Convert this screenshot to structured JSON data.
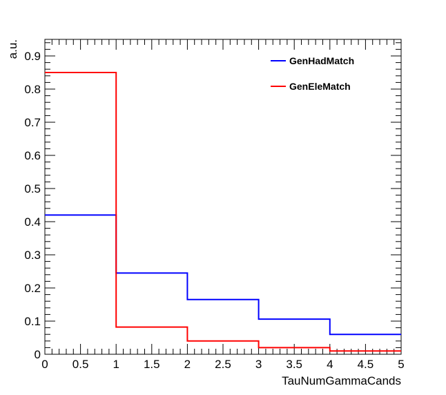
{
  "chart_data": {
    "type": "histogram",
    "title": "",
    "xlabel": "TauNumGammaCands",
    "ylabel": "a.u.",
    "xlim": [
      0,
      5
    ],
    "ylim": [
      0,
      0.95
    ],
    "x_ticks": [
      "0",
      "0.5",
      "1",
      "1.5",
      "2",
      "2.5",
      "3",
      "3.5",
      "4",
      "4.5",
      "5"
    ],
    "y_ticks": [
      "0",
      "0.1",
      "0.2",
      "0.3",
      "0.4",
      "0.5",
      "0.6",
      "0.7",
      "0.8",
      "0.9"
    ],
    "bin_edges": [
      0,
      1,
      2,
      3,
      4,
      5
    ],
    "grid": false,
    "legend_position": "top-right",
    "series": [
      {
        "name": "GenHadMatch",
        "color": "#0000ff",
        "values": [
          0.42,
          0.245,
          0.165,
          0.106,
          0.06
        ]
      },
      {
        "name": "GenEleMatch",
        "color": "#ff0000",
        "values": [
          0.85,
          0.082,
          0.04,
          0.02,
          0.01
        ]
      }
    ]
  }
}
